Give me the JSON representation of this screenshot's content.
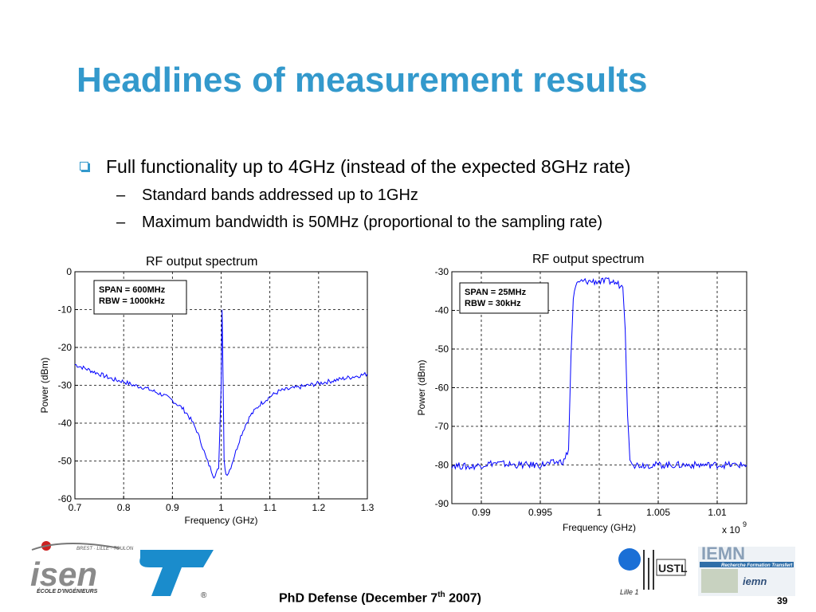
{
  "slide": {
    "title": "Headlines of measurement results",
    "bullet": "Full functionality up to 4GHz (instead of the expected 8GHz rate)",
    "sub_bullets": [
      {
        "dash": "–",
        "text": "Standard bands addressed up to 1GHz"
      },
      {
        "dash": "–",
        "text": "Maximum bandwidth is 50MHz (proportional to the sampling rate)"
      }
    ],
    "footer_prefix": "PhD Defense (December 7",
    "footer_sup": "th",
    "footer_suffix": " 2007)",
    "page_number": "39"
  },
  "logos": {
    "isen": {
      "name": "isen",
      "tagline": "BREST · LILLE · TOULON",
      "subtitle": "ÉCOLE D'INGÉNIEURS"
    },
    "st": {
      "name": "ST",
      "mark": "®"
    },
    "ustl": {
      "name": "USTL",
      "city": "Lille 1"
    },
    "iemn": {
      "name": "IEMN",
      "line": "Recherche Formation Transfert",
      "sub": "iemn"
    }
  },
  "chart_data": [
    {
      "type": "line",
      "title": "RF output spectrum",
      "xlabel": "Frequency (GHz)",
      "ylabel": "Power (dBm)",
      "xlim": [
        0.7,
        1.3
      ],
      "ylim": [
        -60,
        0
      ],
      "xticks": [
        "0.7",
        "0.8",
        "0.9",
        "1",
        "1.1",
        "1.2",
        "1.3"
      ],
      "yticks": [
        "0",
        "-10",
        "-20",
        "-30",
        "-40",
        "-50",
        "-60"
      ],
      "grid": true,
      "color": "#0000ff",
      "annotation": [
        "SPAN = 600MHz",
        "RBW = 1000kHz"
      ],
      "x": [
        0.7,
        0.72,
        0.74,
        0.76,
        0.78,
        0.8,
        0.82,
        0.84,
        0.86,
        0.88,
        0.9,
        0.91,
        0.92,
        0.93,
        0.94,
        0.95,
        0.96,
        0.97,
        0.98,
        0.985,
        0.99,
        0.995,
        1.0,
        1.002,
        1.004,
        1.006,
        1.01,
        1.015,
        1.02,
        1.03,
        1.04,
        1.05,
        1.06,
        1.08,
        1.1,
        1.12,
        1.14,
        1.16,
        1.18,
        1.2,
        1.22,
        1.24,
        1.26,
        1.28,
        1.3
      ],
      "y": [
        -24.5,
        -25.5,
        -26.5,
        -27.5,
        -28.5,
        -29,
        -30,
        -30.5,
        -31.5,
        -32.5,
        -34,
        -35,
        -36,
        -37.5,
        -39.5,
        -42,
        -45.5,
        -49.5,
        -52.5,
        -54,
        -53,
        -52,
        -30,
        -10,
        -28,
        -50,
        -53.5,
        -53,
        -51.5,
        -47.5,
        -43.5,
        -40.5,
        -38,
        -35,
        -33,
        -31.5,
        -31,
        -30.5,
        -30,
        -29.5,
        -29,
        -28.5,
        -28,
        -27.5,
        -27
      ]
    },
    {
      "type": "line",
      "title": "RF output spectrum",
      "xlabel": "Frequency (GHz)",
      "ylabel": "Power (dBm)",
      "xlim": [
        0.9875,
        1.0125
      ],
      "ylim": [
        -90,
        -30
      ],
      "xticks": [
        "0.99",
        "0.995",
        "1",
        "1.005",
        "1.01"
      ],
      "yticks": [
        "-30",
        "-40",
        "-50",
        "-60",
        "-70",
        "-80",
        "-90"
      ],
      "x_multiplier": "x 10",
      "x_multiplier_exp": "9",
      "grid": true,
      "color": "#0000ff",
      "annotation": [
        "SPAN = 25MHz",
        "RBW = 30kHz"
      ],
      "x": [
        0.9875,
        0.989,
        0.991,
        0.993,
        0.995,
        0.996,
        0.997,
        0.9974,
        0.9976,
        0.9978,
        0.998,
        0.9985,
        0.999,
        1.0,
        1.001,
        1.0015,
        1.002,
        1.0022,
        1.0024,
        1.0026,
        1.003,
        1.004,
        1.006,
        1.008,
        1.01,
        1.0125
      ],
      "y": [
        -80,
        -80.5,
        -79.5,
        -80,
        -80,
        -79.5,
        -79,
        -76,
        -52,
        -37,
        -33.5,
        -32.5,
        -32.5,
        -32.5,
        -32.5,
        -33,
        -34,
        -45,
        -67,
        -78,
        -80,
        -80,
        -80,
        -80,
        -80,
        -80
      ]
    }
  ]
}
